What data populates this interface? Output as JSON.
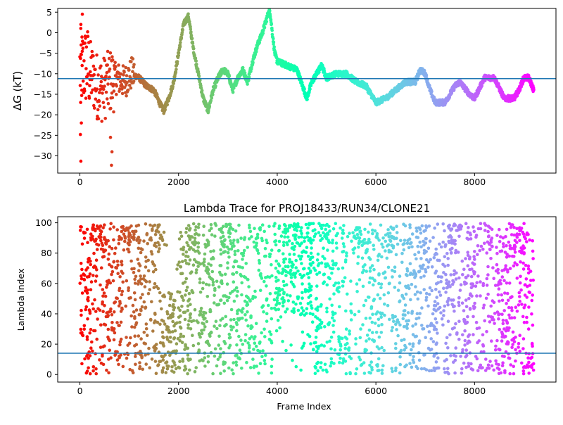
{
  "chart_data": [
    {
      "type": "scatter",
      "title": "",
      "xlabel": "",
      "ylabel": "ΔG (kT)",
      "xlim": [
        -450,
        9650
      ],
      "ylim": [
        -34.2,
        5.9
      ],
      "xticks": [
        0,
        2000,
        4000,
        6000,
        8000
      ],
      "xtick_labels": [
        "0",
        "2000",
        "4000",
        "6000",
        "8000"
      ],
      "yticks": [
        -30,
        -25,
        -20,
        -15,
        -10,
        -5,
        0,
        5
      ],
      "ytick_labels": [
        "−30",
        "−25",
        "−20",
        "−15",
        "−10",
        "−5",
        "0",
        "5"
      ],
      "hline": -11.2,
      "hline_color": "#1f77b4",
      "colormap": "rainbow (reversed over frame index)",
      "trace_keypoints": [
        [
          0,
          -9
        ],
        [
          150,
          -8
        ],
        [
          300,
          -12
        ],
        [
          450,
          -14
        ],
        [
          600,
          -12
        ],
        [
          750,
          -11
        ],
        [
          900,
          -12
        ],
        [
          1050,
          -10
        ],
        [
          1200,
          -11
        ],
        [
          1350,
          -13
        ],
        [
          1500,
          -14
        ],
        [
          1650,
          -18
        ],
        [
          1700,
          -19
        ],
        [
          1800,
          -16
        ],
        [
          1900,
          -12
        ],
        [
          2000,
          -5
        ],
        [
          2100,
          2
        ],
        [
          2200,
          4
        ],
        [
          2300,
          -4
        ],
        [
          2400,
          -10
        ],
        [
          2500,
          -16
        ],
        [
          2600,
          -19
        ],
        [
          2700,
          -14
        ],
        [
          2800,
          -11
        ],
        [
          2900,
          -9
        ],
        [
          3000,
          -10
        ],
        [
          3100,
          -14
        ],
        [
          3200,
          -11
        ],
        [
          3300,
          -9
        ],
        [
          3400,
          -12
        ],
        [
          3500,
          -7
        ],
        [
          3600,
          -3
        ],
        [
          3700,
          0
        ],
        [
          3800,
          4
        ],
        [
          3850,
          5.5
        ],
        [
          3900,
          0
        ],
        [
          3950,
          -5
        ],
        [
          4000,
          -7
        ],
        [
          4200,
          -8
        ],
        [
          4400,
          -9
        ],
        [
          4600,
          -16
        ],
        [
          4700,
          -12
        ],
        [
          4800,
          -10
        ],
        [
          4900,
          -8
        ],
        [
          5000,
          -11
        ],
        [
          5200,
          -10
        ],
        [
          5400,
          -10
        ],
        [
          5600,
          -12
        ],
        [
          5800,
          -13
        ],
        [
          6000,
          -17
        ],
        [
          6200,
          -16
        ],
        [
          6400,
          -14
        ],
        [
          6600,
          -12
        ],
        [
          6800,
          -12
        ],
        [
          6900,
          -9
        ],
        [
          7000,
          -10
        ],
        [
          7100,
          -14
        ],
        [
          7200,
          -17
        ],
        [
          7400,
          -17
        ],
        [
          7600,
          -13
        ],
        [
          7700,
          -12
        ],
        [
          7900,
          -15
        ],
        [
          8000,
          -16
        ],
        [
          8200,
          -11
        ],
        [
          8400,
          -11
        ],
        [
          8600,
          -16
        ],
        [
          8800,
          -16
        ],
        [
          8900,
          -14
        ],
        [
          9000,
          -11
        ],
        [
          9100,
          -11
        ],
        [
          9200,
          -14
        ]
      ],
      "outlier_points": [
        [
          20,
          -31.3
        ],
        [
          640,
          -32.3
        ],
        [
          650,
          -29
        ],
        [
          620,
          -25.5
        ],
        [
          10,
          -24.8
        ],
        [
          30,
          -22
        ],
        [
          350,
          -21
        ],
        [
          15,
          -17
        ],
        [
          40,
          -14
        ],
        [
          50,
          4.5
        ],
        [
          45,
          -8
        ],
        [
          20,
          2
        ],
        [
          25,
          -3
        ]
      ]
    },
    {
      "type": "scatter",
      "title": "Lambda Trace for PROJ18433/RUN34/CLONE21",
      "xlabel": "Frame Index",
      "ylabel": "Lambda Index",
      "xlim": [
        -450,
        9650
      ],
      "ylim": [
        -5,
        104
      ],
      "xticks": [
        0,
        2000,
        4000,
        6000,
        8000
      ],
      "xtick_labels": [
        "0",
        "2000",
        "4000",
        "6000",
        "8000"
      ],
      "yticks": [
        0,
        20,
        40,
        60,
        80,
        100
      ],
      "ytick_labels": [
        "0",
        "20",
        "40",
        "60",
        "80",
        "100"
      ],
      "hline": 14,
      "hline_color": "#1f77b4",
      "colormap": "rainbow (reversed over frame index)",
      "sample_points": 1200
    }
  ]
}
